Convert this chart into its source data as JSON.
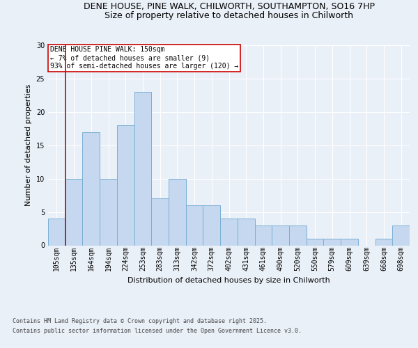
{
  "title1": "DENE HOUSE, PINE WALK, CHILWORTH, SOUTHAMPTON, SO16 7HP",
  "title2": "Size of property relative to detached houses in Chilworth",
  "xlabel": "Distribution of detached houses by size in Chilworth",
  "ylabel": "Number of detached properties",
  "categories": [
    "105sqm",
    "135sqm",
    "164sqm",
    "194sqm",
    "224sqm",
    "253sqm",
    "283sqm",
    "313sqm",
    "342sqm",
    "372sqm",
    "402sqm",
    "431sqm",
    "461sqm",
    "490sqm",
    "520sqm",
    "550sqm",
    "579sqm",
    "609sqm",
    "639sqm",
    "668sqm",
    "698sqm"
  ],
  "values": [
    4,
    10,
    17,
    10,
    18,
    23,
    7,
    10,
    6,
    6,
    4,
    4,
    3,
    3,
    3,
    1,
    1,
    1,
    0,
    1,
    3
  ],
  "bar_color": "#c5d8f0",
  "bar_edge_color": "#7aafd4",
  "bar_width": 1.0,
  "vline_color": "#cc0000",
  "annotation_title": "DENE HOUSE PINE WALK: 150sqm",
  "annotation_line1": "← 7% of detached houses are smaller (9)",
  "annotation_line2": "93% of semi-detached houses are larger (120) →",
  "annotation_box_color": "#cc0000",
  "ylim": [
    0,
    30
  ],
  "yticks": [
    0,
    5,
    10,
    15,
    20,
    25,
    30
  ],
  "footer1": "Contains HM Land Registry data © Crown copyright and database right 2025.",
  "footer2": "Contains public sector information licensed under the Open Government Licence v3.0.",
  "background_color": "#eaf0f8",
  "plot_background": "#eaf0f8",
  "grid_color": "#ffffff",
  "title_fontsize": 9,
  "subtitle_fontsize": 9,
  "axis_fontsize": 8,
  "tick_fontsize": 7,
  "annotation_fontsize": 7,
  "footer_fontsize": 6
}
